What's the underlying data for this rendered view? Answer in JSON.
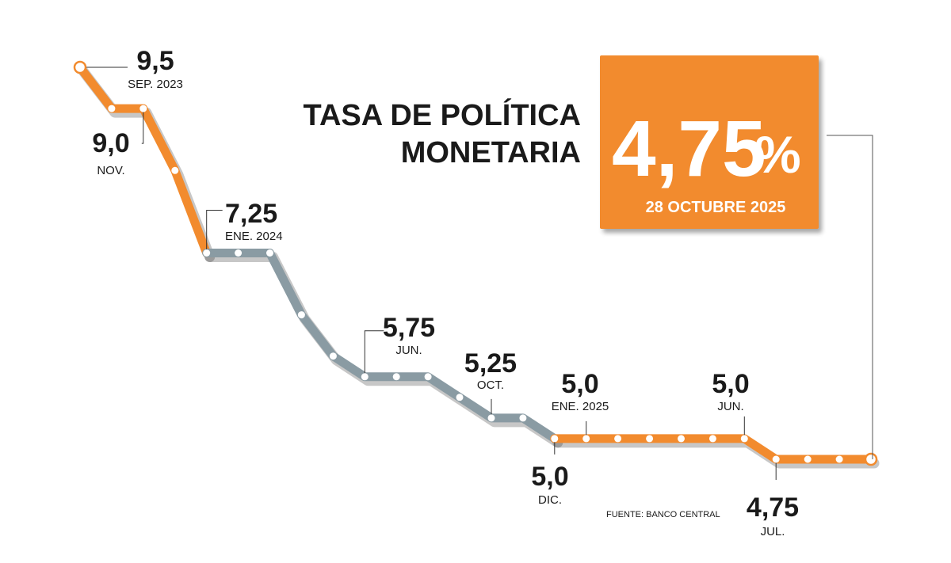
{
  "chart_data": {
    "type": "line",
    "title": "TASA DE POLÍTICA MONETARIA",
    "title_lines": [
      "TASA DE POLÍTICA",
      "MONETARIA"
    ],
    "highlight": {
      "value": "4,75",
      "unit": "%",
      "date": "28 OCTUBRE 2025"
    },
    "source": "FUENTE: BANCO CENTRAL",
    "colors": {
      "orange": "#f28b2e",
      "gray": "#8a9ba3",
      "text": "#1a1a1a"
    },
    "values": [
      9.5,
      9.0,
      9.0,
      8.25,
      7.25,
      7.25,
      7.25,
      6.5,
      6.0,
      5.75,
      5.75,
      5.75,
      5.5,
      5.25,
      5.25,
      5.0,
      5.0,
      5.0,
      5.0,
      5.0,
      5.0,
      5.0,
      4.75,
      4.75,
      4.75,
      4.75
    ],
    "series": [
      {
        "color": "orange",
        "from": 0,
        "to": 4
      },
      {
        "color": "gray",
        "from": 4,
        "to": 15
      },
      {
        "color": "orange",
        "from": 15,
        "to": 25
      }
    ],
    "annotations": [
      {
        "index": 0,
        "value": "9,5",
        "label": "SEP. 2023"
      },
      {
        "index": 2,
        "value": "9,0",
        "label": "NOV."
      },
      {
        "index": 4,
        "value": "7,25",
        "label": "ENE. 2024"
      },
      {
        "index": 9,
        "value": "5,75",
        "label": "JUN."
      },
      {
        "index": 13,
        "value": "5,25",
        "label": "OCT."
      },
      {
        "index": 15,
        "value": "5,0",
        "label": "DIC."
      },
      {
        "index": 16,
        "value": "5,0",
        "label": "ENE. 2025"
      },
      {
        "index": 21,
        "value": "5,0",
        "label": "JUN."
      },
      {
        "index": 22,
        "value": "4,75",
        "label": "JUL."
      }
    ]
  }
}
